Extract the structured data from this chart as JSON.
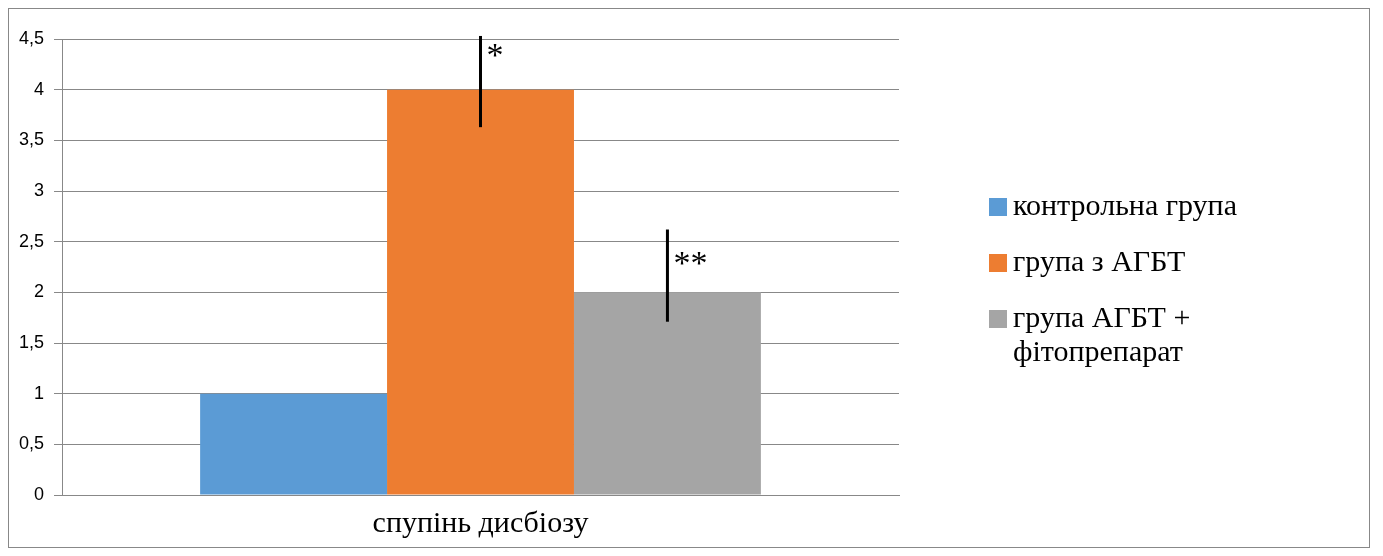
{
  "chart_data": {
    "type": "bar",
    "categories": [
      "спупінь дисбіозу"
    ],
    "series": [
      {
        "name": "контрольна група",
        "color": "#5b9bd5",
        "values": [
          1
        ]
      },
      {
        "name": "група з АГБТ",
        "color": "#ed7d31",
        "values": [
          4
        ],
        "errors": [
          [
            3.63,
            4.53
          ]
        ]
      },
      {
        "name": "група АГБТ + фітопрепарат",
        "color": "#a5a5a5",
        "values": [
          2
        ],
        "errors": [
          [
            1.71,
            2.62
          ]
        ]
      }
    ],
    "ylim": [
      0,
      4.5
    ],
    "yticks": [
      0,
      {
        "value": 0.5,
        "label": "0,5"
      },
      1,
      {
        "value": 1.5,
        "label": "1,5"
      },
      2,
      {
        "value": 2.5,
        "label": "2,5"
      },
      3,
      {
        "value": 3.5,
        "label": "3,5"
      },
      4,
      {
        "value": 4.5,
        "label": "4,5"
      }
    ],
    "grid": "y",
    "legend": "right",
    "annotations": [
      "*",
      "**"
    ]
  }
}
